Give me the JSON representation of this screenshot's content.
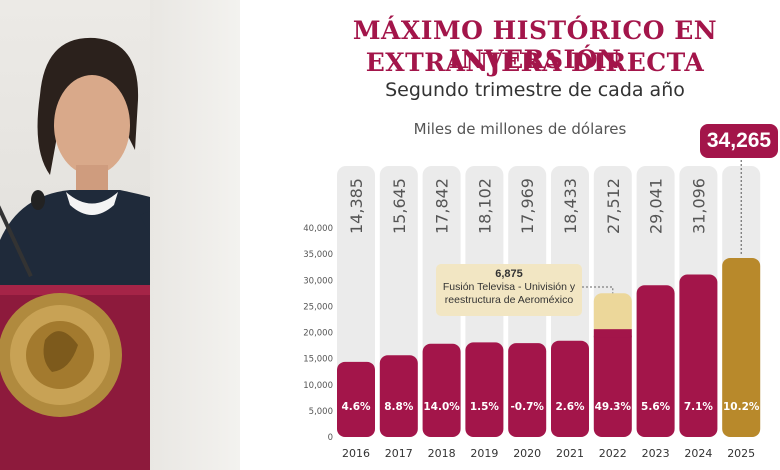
{
  "headline": {
    "line1": "MÁXIMO HISTÓRICO EN INVERSIÓN",
    "line2": "EXTRANJERA DIRECTA",
    "subtitle": "Segundo trimestre de cada año",
    "units": "Miles de millones de dólares"
  },
  "colors": {
    "primary": "#a3154a",
    "highlight": "#b8892b",
    "extra": "#ecd79a",
    "column": "#ebebeb"
  },
  "chart_data": {
    "type": "bar",
    "categories": [
      "2016",
      "2017",
      "2018",
      "2019",
      "2020",
      "2021",
      "2022",
      "2023",
      "2024",
      "2025"
    ],
    "values": [
      14385,
      15645,
      17842,
      18102,
      17969,
      18433,
      27512,
      29041,
      31096,
      34265
    ],
    "value_labels": [
      "14,385",
      "15,645",
      "17,842",
      "18,102",
      "17,969",
      "18,433",
      "27,512",
      "29,041",
      "31,096",
      "34,265"
    ],
    "growth_labels": [
      "4.6%",
      "8.8%",
      "14.0%",
      "1.5%",
      "-0.7%",
      "2.6%",
      "49.3%",
      "5.6%",
      "7.1%",
      "10.2%"
    ],
    "stacked_extra": {
      "category": "2022",
      "value": 6875,
      "label": "6,875",
      "note": "Fusión Televisa - Univisión y reestructura de Aeroméxico"
    },
    "highlight_category": "2025",
    "yticks": [
      "0",
      "5,000",
      "10,000",
      "15,000",
      "20,000",
      "25,000",
      "30,000",
      "35,000",
      "40,000"
    ],
    "ylim": [
      0,
      40000
    ],
    "grid": false
  }
}
